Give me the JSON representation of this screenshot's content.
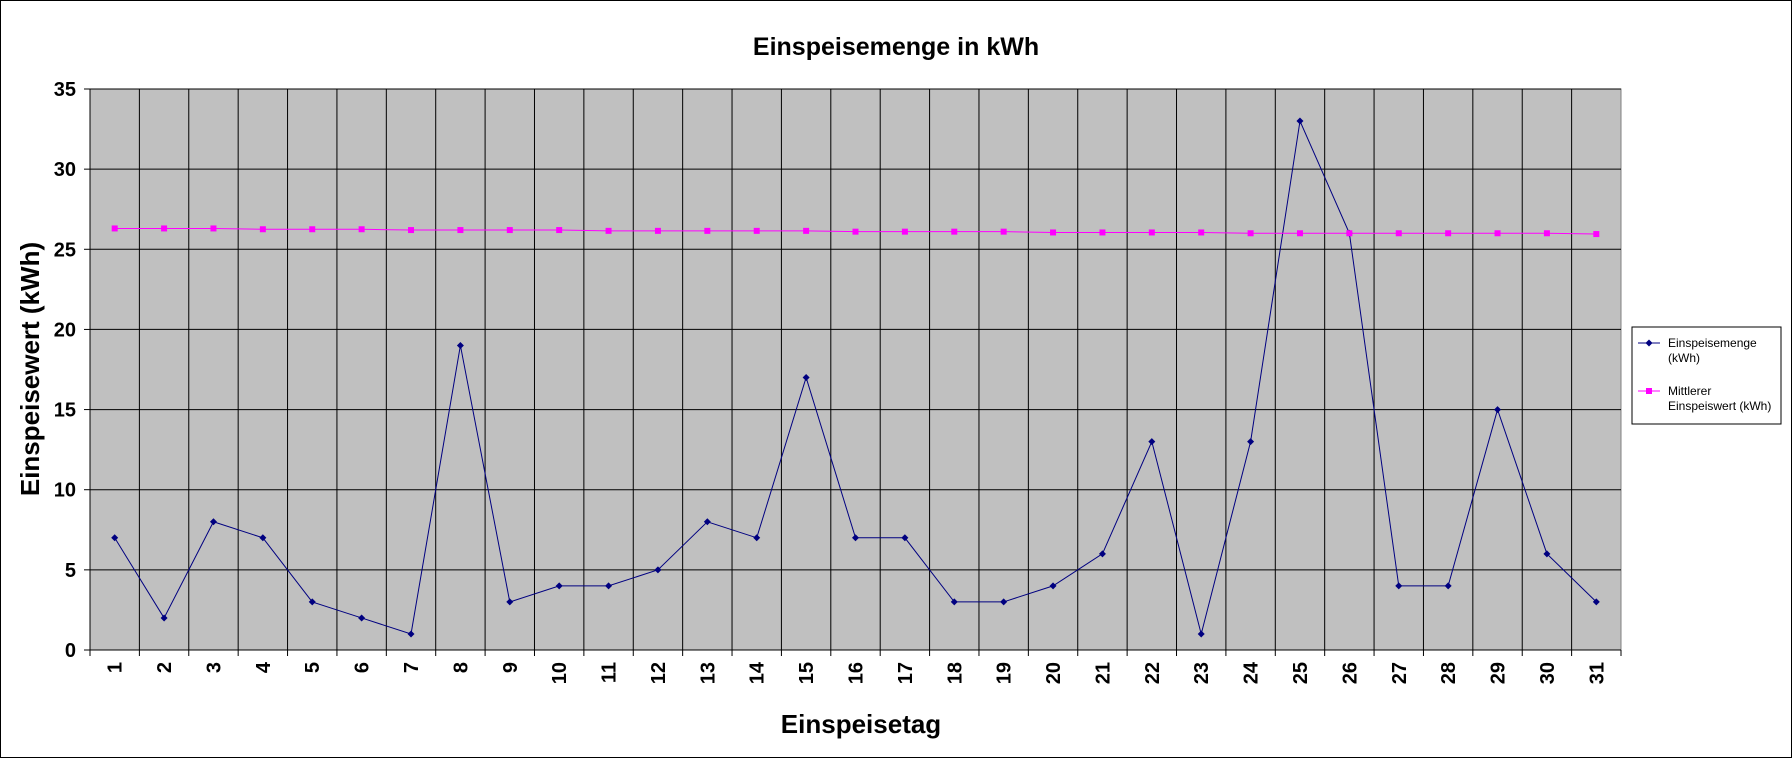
{
  "chart_data": {
    "type": "line",
    "title": "Einspeisemenge in kWh",
    "xlabel": "Einspeisetag",
    "ylabel": "Einspeisewert  (kWh)",
    "ylim": [
      0,
      35
    ],
    "yticks": [
      0,
      5,
      10,
      15,
      20,
      25,
      30,
      35
    ],
    "grid": true,
    "legend_position": "right",
    "plot_background": "#c0c0c0",
    "categories": [
      "1",
      "2",
      "3",
      "4",
      "5",
      "6",
      "7",
      "8",
      "9",
      "10",
      "11",
      "12",
      "13",
      "14",
      "15",
      "16",
      "17",
      "18",
      "19",
      "20",
      "21",
      "22",
      "23",
      "24",
      "25",
      "26",
      "27",
      "28",
      "29",
      "30",
      "31"
    ],
    "series": [
      {
        "name": "Einspeisemenge (kWh)",
        "legend_lines": [
          "Einspeisemenge",
          "(kWh)"
        ],
        "color": "#000080",
        "marker": "diamond",
        "values": [
          7,
          2,
          8,
          7,
          3,
          2,
          1,
          19,
          3,
          4,
          4,
          5,
          8,
          7,
          17,
          7,
          7,
          3,
          3,
          4,
          6,
          13,
          1,
          13,
          33,
          26,
          4,
          4,
          15,
          6,
          3
        ]
      },
      {
        "name": "Mittlerer Einspeiswert (kWh)",
        "legend_lines": [
          "Mittlerer",
          "Einspeiswert (kWh)"
        ],
        "color": "#ff00ff",
        "marker": "square",
        "values": [
          26.3,
          26.3,
          26.3,
          26.25,
          26.25,
          26.25,
          26.2,
          26.2,
          26.2,
          26.2,
          26.15,
          26.15,
          26.15,
          26.15,
          26.15,
          26.1,
          26.1,
          26.1,
          26.1,
          26.05,
          26.05,
          26.05,
          26.05,
          26.0,
          26.0,
          26.0,
          26.0,
          26.0,
          26.0,
          26.0,
          25.95
        ]
      }
    ]
  }
}
